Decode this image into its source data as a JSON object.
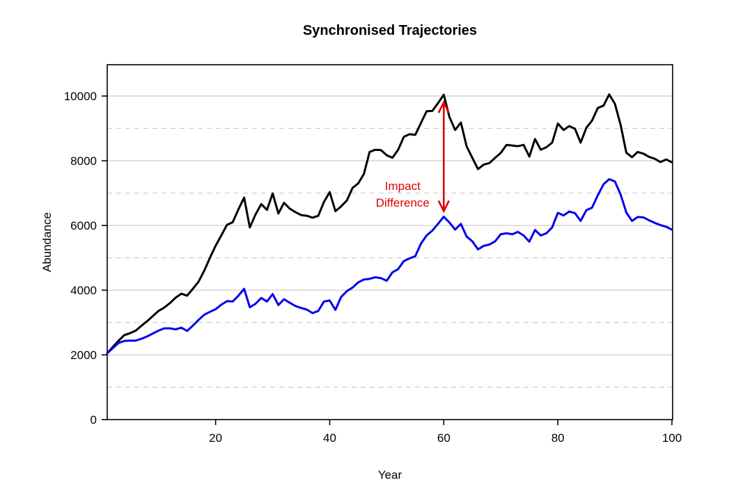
{
  "chart_data": {
    "type": "line",
    "title": "Synchronised Trajectories",
    "xlabel": "Year",
    "ylabel": "Abundance",
    "xlim": [
      1,
      100
    ],
    "ylim": [
      0,
      10000
    ],
    "x_ticks": [
      20,
      40,
      60,
      80,
      100
    ],
    "y_ticks": [
      0,
      2000,
      4000,
      6000,
      8000,
      10000
    ],
    "grid": {
      "color": "#cdcdcd",
      "solid_at": [
        2000,
        4000,
        6000,
        8000,
        10000
      ],
      "dashed_at": [
        1000,
        3000,
        5000,
        7000,
        9000
      ]
    },
    "x": [
      1,
      2,
      3,
      4,
      5,
      6,
      7,
      8,
      9,
      10,
      11,
      12,
      13,
      14,
      15,
      16,
      17,
      18,
      19,
      20,
      21,
      22,
      23,
      24,
      25,
      26,
      27,
      28,
      29,
      30,
      31,
      32,
      33,
      34,
      35,
      36,
      37,
      38,
      39,
      40,
      41,
      42,
      43,
      44,
      45,
      46,
      47,
      48,
      49,
      50,
      51,
      52,
      53,
      54,
      55,
      56,
      57,
      58,
      59,
      60,
      61,
      62,
      63,
      64,
      65,
      66,
      67,
      68,
      69,
      70,
      71,
      72,
      73,
      74,
      75,
      76,
      77,
      78,
      79,
      80,
      81,
      82,
      83,
      84,
      85,
      86,
      87,
      88,
      89,
      90,
      91,
      92,
      93,
      94,
      95,
      96,
      97,
      98,
      99,
      100
    ],
    "series": [
      {
        "name": "black-trajectory",
        "color": "#000000",
        "values": [
          2050,
          2250,
          2440,
          2610,
          2670,
          2750,
          2900,
          3040,
          3200,
          3360,
          3460,
          3600,
          3770,
          3890,
          3830,
          4040,
          4260,
          4600,
          5000,
          5370,
          5690,
          6020,
          6100,
          6500,
          6860,
          5940,
          6340,
          6660,
          6480,
          6990,
          6370,
          6700,
          6520,
          6410,
          6320,
          6300,
          6240,
          6300,
          6730,
          7030,
          6440,
          6590,
          6770,
          7160,
          7300,
          7590,
          8270,
          8340,
          8330,
          8170,
          8090,
          8340,
          8740,
          8820,
          8800,
          9170,
          9530,
          9540,
          9780,
          10040,
          9350,
          8950,
          9180,
          8450,
          8090,
          7740,
          7880,
          7930,
          8090,
          8240,
          8490,
          8470,
          8450,
          8490,
          8130,
          8670,
          8340,
          8420,
          8560,
          9150,
          8950,
          9070,
          8990,
          8560,
          9020,
          9240,
          9630,
          9700,
          10050,
          9760,
          9110,
          8250,
          8110,
          8270,
          8220,
          8120,
          8060,
          7960,
          8040,
          7950
        ]
      },
      {
        "name": "blue-trajectory",
        "color": "#0000ee",
        "values": [
          2050,
          2210,
          2370,
          2430,
          2440,
          2440,
          2500,
          2570,
          2660,
          2750,
          2820,
          2820,
          2790,
          2840,
          2740,
          2900,
          3080,
          3240,
          3330,
          3410,
          3550,
          3660,
          3650,
          3830,
          4040,
          3470,
          3580,
          3760,
          3650,
          3880,
          3540,
          3720,
          3610,
          3510,
          3450,
          3400,
          3290,
          3360,
          3650,
          3680,
          3390,
          3790,
          3970,
          4080,
          4240,
          4330,
          4350,
          4400,
          4370,
          4290,
          4550,
          4650,
          4900,
          4980,
          5050,
          5440,
          5690,
          5840,
          6050,
          6270,
          6090,
          5870,
          6050,
          5660,
          5510,
          5260,
          5370,
          5410,
          5510,
          5730,
          5760,
          5730,
          5800,
          5690,
          5500,
          5860,
          5690,
          5760,
          5940,
          6390,
          6310,
          6430,
          6380,
          6140,
          6470,
          6550,
          6930,
          7270,
          7430,
          7360,
          6960,
          6400,
          6140,
          6260,
          6250,
          6160,
          6080,
          6010,
          5960,
          5870
        ]
      }
    ],
    "annotation": {
      "text_lines": [
        "Impact",
        "Difference"
      ],
      "color": "#e00000",
      "arrow_x": 60,
      "arrow_from_series": 0,
      "arrow_to_series": 1
    },
    "legend": "none"
  }
}
